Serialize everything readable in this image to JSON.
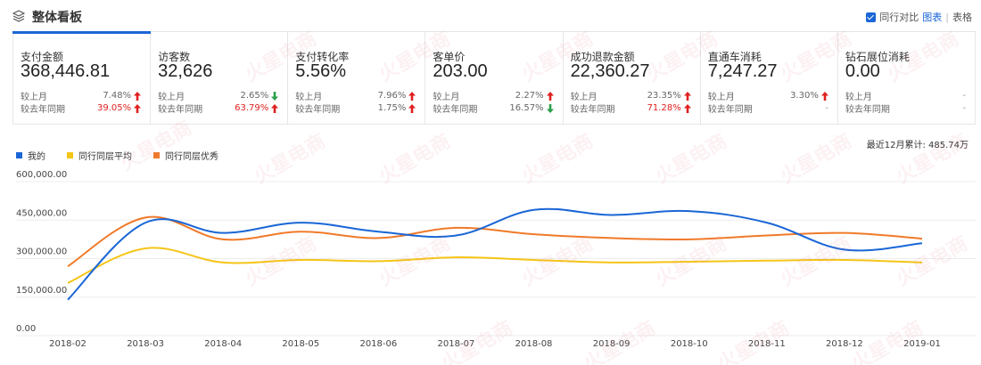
{
  "header": {
    "title": "整体看板",
    "compare_label": "同行对比",
    "view_chart": "图表",
    "view_sep": "|",
    "view_table": "表格"
  },
  "metrics": [
    {
      "label": "支付金额",
      "value": "368,446.81",
      "row1_label": "较上月",
      "row1_pct": "7.48%",
      "row1_dir": "up",
      "row2_label": "较去年同期",
      "row2_pct": "39.05%",
      "row2_dir": "up",
      "row2_red": true
    },
    {
      "label": "访客数",
      "value": "32,626",
      "row1_label": "较上月",
      "row1_pct": "2.65%",
      "row1_dir": "down",
      "row2_label": "较去年同期",
      "row2_pct": "63.79%",
      "row2_dir": "up",
      "row2_red": true
    },
    {
      "label": "支付转化率",
      "value": "5.56%",
      "row1_label": "较上月",
      "row1_pct": "7.96%",
      "row1_dir": "up",
      "row2_label": "较去年同期",
      "row2_pct": "1.75%",
      "row2_dir": "up",
      "row2_red": false
    },
    {
      "label": "客单价",
      "value": "203.00",
      "row1_label": "较上月",
      "row1_pct": "2.27%",
      "row1_dir": "up",
      "row2_label": "较去年同期",
      "row2_pct": "16.57%",
      "row2_dir": "down",
      "row2_red": false
    },
    {
      "label": "成功退款金额",
      "value": "22,360.27",
      "row1_label": "较上月",
      "row1_pct": "23.35%",
      "row1_dir": "up",
      "row2_label": "较去年同期",
      "row2_pct": "71.28%",
      "row2_dir": "up",
      "row2_red": true
    },
    {
      "label": "直通车消耗",
      "value": "7,247.27",
      "row1_label": "较上月",
      "row1_pct": "3.30%",
      "row1_dir": "up",
      "row2_label": "较去年同期",
      "row2_pct": "-",
      "row2_dir": "none",
      "row2_red": false
    },
    {
      "label": "钻石展位消耗",
      "value": "0.00",
      "row1_label": "较上月",
      "row1_pct": "-",
      "row1_dir": "none",
      "row2_label": "较去年同期",
      "row2_pct": "-",
      "row2_dir": "none",
      "row2_red": false
    }
  ],
  "total_label": "最近12月累计: 485.74万",
  "colors": {
    "mine": "#1a66d6",
    "avg": "#f5c518",
    "best": "#f07a2a",
    "up": "#e02020",
    "down": "#2aa04a"
  },
  "chart_data": {
    "type": "line",
    "categories": [
      "2018-02",
      "2018-03",
      "2018-04",
      "2018-05",
      "2018-06",
      "2018-07",
      "2018-08",
      "2018-09",
      "2018-10",
      "2018-11",
      "2018-12",
      "2019-01"
    ],
    "yticks": [
      "600,000.00",
      "450,000.00",
      "300,000.00",
      "150,000.00",
      "0.00"
    ],
    "ylim": [
      0,
      600000
    ],
    "series": [
      {
        "name": "我的",
        "color": "#1a66d6",
        "values": [
          140000,
          440000,
          400000,
          440000,
          405000,
          390000,
          490000,
          470000,
          485000,
          440000,
          335000,
          360000
        ]
      },
      {
        "name": "同行同层平均",
        "color": "#f5c518",
        "values": [
          205000,
          340000,
          285000,
          295000,
          290000,
          305000,
          295000,
          285000,
          288000,
          292000,
          295000,
          285000
        ]
      },
      {
        "name": "同行同层优秀",
        "color": "#f07a2a",
        "values": [
          270000,
          460000,
          375000,
          405000,
          380000,
          420000,
          395000,
          380000,
          375000,
          390000,
          400000,
          378000
        ]
      }
    ]
  },
  "watermark_text": "火星电商"
}
